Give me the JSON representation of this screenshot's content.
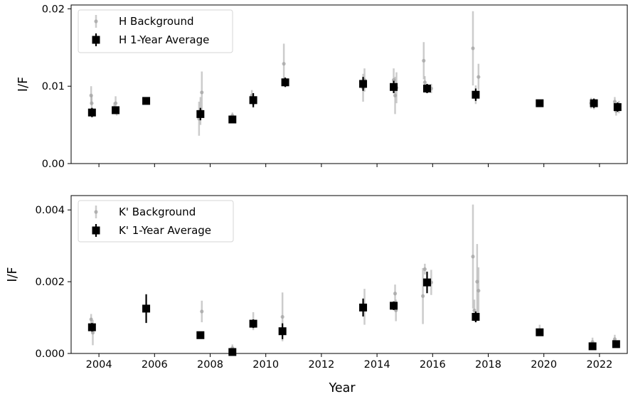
{
  "chart_data": [
    {
      "type": "scatter",
      "ylabel": "I/F",
      "xlim": [
        2003,
        2023
      ],
      "ylim": [
        0,
        0.0205
      ],
      "yticks": [
        0.0,
        0.01,
        0.02
      ],
      "ytick_labels": [
        "0.00",
        "0.01",
        "0.02"
      ],
      "grid": false,
      "legend_position": "upper-left",
      "series": [
        {
          "name": "H Background",
          "color": "#a3a3a3",
          "points": [
            {
              "x": 2003.72,
              "y": 0.0088,
              "err": 0.0012
            },
            {
              "x": 2003.74,
              "y": 0.0078,
              "err": 0.001
            },
            {
              "x": 2003.76,
              "y": 0.0065,
              "err": 0.0005
            },
            {
              "x": 2004.55,
              "y": 0.0072,
              "err": 0.0007
            },
            {
              "x": 2004.6,
              "y": 0.0078,
              "err": 0.0009
            },
            {
              "x": 2004.64,
              "y": 0.0068,
              "err": 0.0006
            },
            {
              "x": 2007.6,
              "y": 0.0058,
              "err": 0.0022
            },
            {
              "x": 2007.65,
              "y": 0.0068,
              "err": 0.0018
            },
            {
              "x": 2007.7,
              "y": 0.0092,
              "err": 0.0027
            },
            {
              "x": 2008.8,
              "y": 0.0062,
              "err": 0.0004
            },
            {
              "x": 2009.5,
              "y": 0.0088,
              "err": 0.0007
            },
            {
              "x": 2009.55,
              "y": 0.0078,
              "err": 0.0006
            },
            {
              "x": 2010.65,
              "y": 0.0129,
              "err": 0.0026
            },
            {
              "x": 2010.68,
              "y": 0.0107,
              "err": 0.0005
            },
            {
              "x": 2013.5,
              "y": 0.0098,
              "err": 0.0018
            },
            {
              "x": 2013.55,
              "y": 0.0108,
              "err": 0.0015
            },
            {
              "x": 2014.6,
              "y": 0.0108,
              "err": 0.0015
            },
            {
              "x": 2014.65,
              "y": 0.0088,
              "err": 0.0024
            },
            {
              "x": 2014.7,
              "y": 0.0098,
              "err": 0.002
            },
            {
              "x": 2015.68,
              "y": 0.0133,
              "err": 0.0024
            },
            {
              "x": 2015.72,
              "y": 0.0105,
              "err": 0.0008
            },
            {
              "x": 2015.95,
              "y": 0.0097,
              "err": 0.0006
            },
            {
              "x": 2017.45,
              "y": 0.0149,
              "err": 0.0048
            },
            {
              "x": 2017.55,
              "y": 0.0089,
              "err": 0.0012
            },
            {
              "x": 2017.65,
              "y": 0.0112,
              "err": 0.0017
            },
            {
              "x": 2019.85,
              "y": 0.0079,
              "err": 0.0003
            },
            {
              "x": 2021.7,
              "y": 0.0078,
              "err": 0.0007
            },
            {
              "x": 2021.8,
              "y": 0.0076,
              "err": 0.0006
            },
            {
              "x": 2022.55,
              "y": 0.008,
              "err": 0.0006
            },
            {
              "x": 2022.6,
              "y": 0.0068,
              "err": 0.0006
            },
            {
              "x": 2022.7,
              "y": 0.0073,
              "err": 0.0008
            }
          ]
        },
        {
          "name": "H 1-Year Average",
          "color": "#000000",
          "points": [
            {
              "x": 2003.75,
              "y": 0.0066,
              "err": 0.0006
            },
            {
              "x": 2004.6,
              "y": 0.0069,
              "err": 0.0005
            },
            {
              "x": 2005.7,
              "y": 0.0081,
              "err": 0.0003
            },
            {
              "x": 2007.65,
              "y": 0.0064,
              "err": 0.0008
            },
            {
              "x": 2008.8,
              "y": 0.0057,
              "err": 0.0004
            },
            {
              "x": 2009.55,
              "y": 0.0082,
              "err": 0.0009
            },
            {
              "x": 2010.7,
              "y": 0.0105,
              "err": 0.0006
            },
            {
              "x": 2013.5,
              "y": 0.0103,
              "err": 0.0009
            },
            {
              "x": 2014.6,
              "y": 0.0099,
              "err": 0.0008
            },
            {
              "x": 2015.8,
              "y": 0.0097,
              "err": 0.0006
            },
            {
              "x": 2017.55,
              "y": 0.0089,
              "err": 0.0008
            },
            {
              "x": 2019.85,
              "y": 0.0078,
              "err": 0.0003
            },
            {
              "x": 2021.8,
              "y": 0.0078,
              "err": 0.0006
            },
            {
              "x": 2022.65,
              "y": 0.0073,
              "err": 0.0006
            }
          ]
        }
      ]
    },
    {
      "type": "scatter",
      "xlabel": "Year",
      "ylabel": "I/F",
      "xlim": [
        2003,
        2023
      ],
      "ylim": [
        0,
        0.0044
      ],
      "xticks": [
        2004,
        2006,
        2008,
        2010,
        2012,
        2014,
        2016,
        2018,
        2020,
        2022
      ],
      "xtick_labels": [
        "2004",
        "2006",
        "2008",
        "2010",
        "2012",
        "2014",
        "2016",
        "2018",
        "2020",
        "2022"
      ],
      "yticks": [
        0.0,
        0.002,
        0.004
      ],
      "ytick_labels": [
        "0.000",
        "0.002",
        "0.004"
      ],
      "grid": false,
      "legend_position": "upper-left",
      "series": [
        {
          "name": "K' Background",
          "color": "#a3a3a3",
          "points": [
            {
              "x": 2003.72,
              "y": 0.00095,
              "err": 0.00015
            },
            {
              "x": 2003.78,
              "y": 0.00058,
              "err": 0.00035
            },
            {
              "x": 2007.7,
              "y": 0.00117,
              "err": 0.0003
            },
            {
              "x": 2008.8,
              "y": 0.00015,
              "err": 0.0001
            },
            {
              "x": 2009.55,
              "y": 0.0009,
              "err": 0.00025
            },
            {
              "x": 2010.6,
              "y": 0.00102,
              "err": 0.00068
            },
            {
              "x": 2013.55,
              "y": 0.0013,
              "err": 0.0005
            },
            {
              "x": 2014.65,
              "y": 0.00167,
              "err": 0.00025
            },
            {
              "x": 2014.68,
              "y": 0.0012,
              "err": 0.0003
            },
            {
              "x": 2015.65,
              "y": 0.0016,
              "err": 0.00078
            },
            {
              "x": 2015.72,
              "y": 0.00235,
              "err": 0.00015
            },
            {
              "x": 2015.95,
              "y": 0.00198,
              "err": 0.00035
            },
            {
              "x": 2017.45,
              "y": 0.0027,
              "err": 0.00145
            },
            {
              "x": 2017.5,
              "y": 0.0012,
              "err": 0.0003
            },
            {
              "x": 2017.6,
              "y": 0.002,
              "err": 0.00105
            },
            {
              "x": 2017.65,
              "y": 0.00175,
              "err": 0.00065
            },
            {
              "x": 2019.85,
              "y": 0.00065,
              "err": 0.00015
            },
            {
              "x": 2021.75,
              "y": 0.00032,
              "err": 0.00012
            },
            {
              "x": 2022.55,
              "y": 0.0004,
              "err": 0.00012
            },
            {
              "x": 2022.65,
              "y": 0.00025,
              "err": 0.0001
            }
          ]
        },
        {
          "name": "K' 1-Year Average",
          "color": "#000000",
          "points": [
            {
              "x": 2003.75,
              "y": 0.00073,
              "err": 0.00012
            },
            {
              "x": 2005.7,
              "y": 0.00125,
              "err": 0.0004
            },
            {
              "x": 2007.65,
              "y": 0.00051,
              "err": 0.0001
            },
            {
              "x": 2008.8,
              "y": 4e-05,
              "err": 8e-05
            },
            {
              "x": 2009.55,
              "y": 0.00083,
              "err": 0.00012
            },
            {
              "x": 2010.6,
              "y": 0.00062,
              "err": 0.00022
            },
            {
              "x": 2013.5,
              "y": 0.00128,
              "err": 0.00025
            },
            {
              "x": 2014.6,
              "y": 0.00133,
              "err": 0.00012
            },
            {
              "x": 2015.8,
              "y": 0.00198,
              "err": 0.0003
            },
            {
              "x": 2017.55,
              "y": 0.00102,
              "err": 0.00015
            },
            {
              "x": 2019.85,
              "y": 0.00059,
              "err": 5e-05
            },
            {
              "x": 2021.75,
              "y": 0.0002,
              "err": 5e-05
            },
            {
              "x": 2022.6,
              "y": 0.00026,
              "err": 6e-05
            }
          ]
        }
      ]
    }
  ]
}
